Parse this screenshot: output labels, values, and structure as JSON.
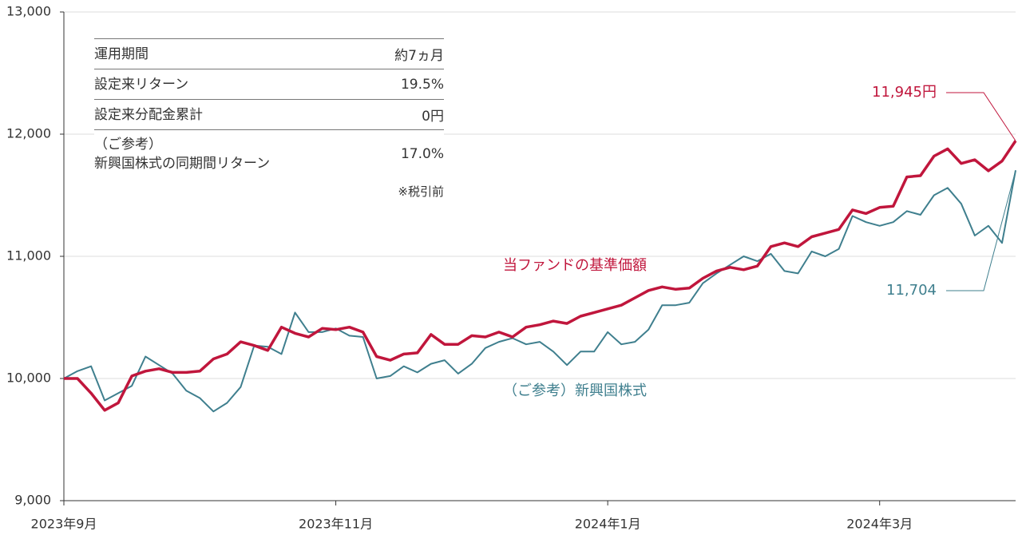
{
  "chart_data": {
    "type": "line",
    "categories": [
      "2023年9月",
      null,
      null,
      null,
      null,
      null,
      null,
      null,
      null,
      null,
      null,
      null,
      null,
      null,
      null,
      null,
      null,
      null,
      null,
      null,
      "2023年11月",
      null,
      null,
      null,
      null,
      null,
      null,
      null,
      null,
      null,
      null,
      null,
      null,
      null,
      null,
      null,
      null,
      null,
      null,
      null,
      "2024年1月",
      null,
      null,
      null,
      null,
      null,
      null,
      null,
      null,
      null,
      null,
      null,
      null,
      null,
      null,
      null,
      null,
      null,
      null,
      null,
      "2024年3月",
      null,
      null,
      null,
      null,
      null,
      null,
      null,
      null,
      null,
      null
    ],
    "series": [
      {
        "name": "当ファンドの基準価額",
        "color": "#c0163c",
        "values": [
          10000,
          10000,
          9880,
          9740,
          9800,
          10020,
          10060,
          10080,
          10050,
          10050,
          10060,
          10160,
          10200,
          10300,
          10270,
          10230,
          10420,
          10370,
          10340,
          10410,
          10400,
          10420,
          10380,
          10180,
          10150,
          10200,
          10210,
          10360,
          10280,
          10280,
          10350,
          10340,
          10380,
          10340,
          10420,
          10440,
          10470,
          10450,
          10510,
          10540,
          10570,
          10600,
          10660,
          10720,
          10750,
          10730,
          10740,
          10820,
          10880,
          10910,
          10890,
          10920,
          11080,
          11110,
          11080,
          11160,
          11190,
          11220,
          11380,
          11350,
          11400,
          11410,
          11650,
          11660,
          11820,
          11880,
          11760,
          11790,
          11700,
          11780,
          11945
        ],
        "value_labels": [
          null,
          null,
          null,
          null,
          null,
          null,
          null,
          null,
          null,
          null,
          null,
          null,
          null,
          null,
          null,
          null,
          null,
          null,
          null,
          null,
          null,
          null,
          null,
          null,
          null,
          null,
          null,
          null,
          null,
          null,
          null,
          null,
          null,
          null,
          null,
          null,
          null,
          null,
          null,
          null,
          null,
          null,
          null,
          null,
          null,
          null,
          null,
          null,
          null,
          null,
          null,
          null,
          null,
          null,
          null,
          null,
          null,
          null,
          null,
          null,
          null,
          null,
          null,
          null,
          null,
          null,
          null,
          null,
          null,
          null,
          "11,945円"
        ]
      },
      {
        "name": "（ご参考）新興国株式",
        "color": "#3f7f8e",
        "values": [
          10000,
          10060,
          10100,
          9820,
          9880,
          9940,
          10180,
          10110,
          10040,
          9900,
          9840,
          9730,
          9800,
          9930,
          10270,
          10260,
          10200,
          10540,
          10380,
          10380,
          10410,
          10350,
          10340,
          10000,
          10020,
          10100,
          10050,
          10120,
          10150,
          10040,
          10120,
          10250,
          10300,
          10330,
          10280,
          10300,
          10220,
          10110,
          10220,
          10220,
          10380,
          10280,
          10300,
          10400,
          10600,
          10600,
          10620,
          10780,
          10860,
          10930,
          11000,
          10960,
          11020,
          10880,
          10860,
          11040,
          11000,
          11060,
          11330,
          11280,
          11250,
          11280,
          11370,
          11340,
          11500,
          11560,
          11430,
          11170,
          11250,
          11110,
          11704
        ],
        "value_labels": [
          null,
          null,
          null,
          null,
          null,
          null,
          null,
          null,
          null,
          null,
          null,
          null,
          null,
          null,
          null,
          null,
          null,
          null,
          null,
          null,
          null,
          null,
          null,
          null,
          null,
          null,
          null,
          null,
          null,
          null,
          null,
          null,
          null,
          null,
          null,
          null,
          null,
          null,
          null,
          null,
          null,
          null,
          null,
          null,
          null,
          null,
          null,
          null,
          null,
          null,
          null,
          null,
          null,
          null,
          null,
          null,
          null,
          null,
          null,
          null,
          null,
          null,
          null,
          null,
          null,
          null,
          null,
          null,
          null,
          null,
          "11,704"
        ]
      }
    ],
    "ylim": [
      9000,
      13000
    ],
    "yticks": [
      {
        "value": 9000,
        "label": "9,000"
      },
      {
        "value": 10000,
        "label": "10,000"
      },
      {
        "value": 11000,
        "label": "11,000"
      },
      {
        "value": 12000,
        "label": "12,000"
      },
      {
        "value": 13000,
        "label": "13,000"
      }
    ],
    "grid": true,
    "info_table": {
      "rows": [
        [
          "運用期間",
          "約7ヵ月"
        ],
        [
          "設定来リターン",
          "19.5%"
        ],
        [
          "設定来分配金累計",
          "0円"
        ],
        [
          "（ご参考）\n新興国株式の同期間リターン",
          "17.0%"
        ]
      ],
      "note": "※税引前"
    }
  }
}
